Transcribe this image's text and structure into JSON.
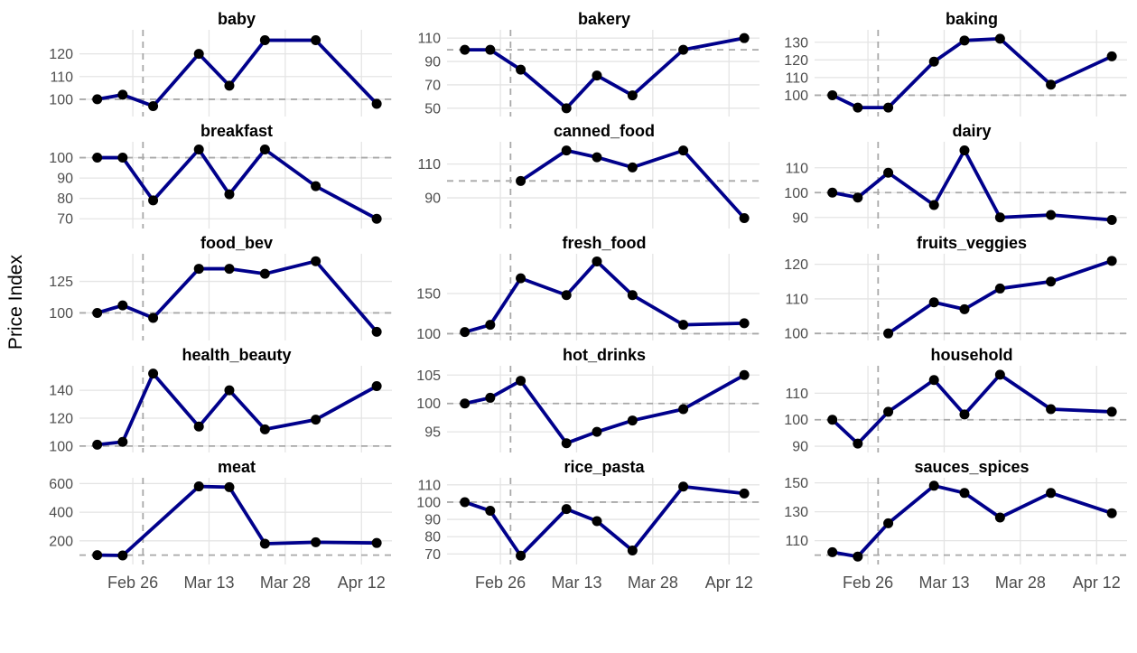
{
  "figure": {
    "ylabel": "Price Index",
    "x_tick_labels": [
      "Feb 26",
      "Mar 13",
      "Mar 28",
      "Apr 12"
    ],
    "x_tick_days": [
      0,
      15,
      30,
      45
    ],
    "xlim_days": [
      -10.5,
      51
    ],
    "x_unit": "days relative to the Feb 26 axis tick",
    "reference_hline_y": 100,
    "reference_vline_day": 2,
    "colors": {
      "line": "#00008B",
      "point": "#000000",
      "grid": "#E4E4E4",
      "dashed_reference": "#A8A8A8",
      "axis_text": "#4D4D4D",
      "title_text": "#000000",
      "background": "#FFFFFF"
    }
  },
  "chart_data": [
    {
      "type": "line",
      "title": "baby",
      "x_days": [
        -7,
        -2,
        4,
        13,
        19,
        26,
        36,
        48
      ],
      "values": [
        100,
        102,
        97,
        120,
        106,
        126,
        126,
        98
      ],
      "yticks": [
        100,
        110,
        120
      ],
      "ylim": [
        94,
        129
      ]
    },
    {
      "type": "line",
      "title": "bakery",
      "x_days": [
        -7,
        -2,
        4,
        13,
        19,
        26,
        36,
        48
      ],
      "values": [
        100,
        100,
        83,
        50,
        78,
        61,
        100,
        110
      ],
      "yticks": [
        50,
        70,
        90,
        110
      ],
      "ylim": [
        46,
        114
      ]
    },
    {
      "type": "line",
      "title": "baking",
      "x_days": [
        -7,
        -2,
        4,
        13,
        19,
        26,
        36,
        48
      ],
      "values": [
        100,
        93,
        93,
        119,
        131,
        132,
        106,
        122
      ],
      "yticks": [
        100,
        110,
        120,
        130
      ],
      "ylim": [
        90,
        135
      ]
    },
    {
      "type": "line",
      "title": "breakfast",
      "x_days": [
        -7,
        -2,
        4,
        13,
        19,
        26,
        36,
        48
      ],
      "values": [
        100,
        100,
        79,
        104,
        82,
        104,
        86,
        70
      ],
      "yticks": [
        70,
        80,
        90,
        100
      ],
      "ylim": [
        67,
        106
      ]
    },
    {
      "type": "line",
      "title": "canned_food",
      "x_days": [
        4,
        13,
        19,
        26,
        36,
        48
      ],
      "values": [
        100,
        118,
        114,
        108,
        118,
        78
      ],
      "yticks": [
        90,
        110
      ],
      "ylim": [
        74,
        121
      ]
    },
    {
      "type": "line",
      "title": "dairy",
      "x_days": [
        -7,
        -2,
        4,
        13,
        19,
        26,
        36,
        48
      ],
      "values": [
        100,
        98,
        108,
        95,
        117,
        90,
        91,
        89
      ],
      "yticks": [
        90,
        100,
        110
      ],
      "ylim": [
        87,
        119
      ]
    },
    {
      "type": "line",
      "title": "food_bev",
      "x_days": [
        -7,
        -2,
        4,
        13,
        19,
        26,
        36,
        48
      ],
      "values": [
        100,
        106,
        96,
        135,
        135,
        131,
        141,
        85
      ],
      "yticks": [
        100,
        125
      ],
      "ylim": [
        81,
        144
      ]
    },
    {
      "type": "line",
      "title": "fresh_food",
      "x_days": [
        -7,
        -2,
        4,
        13,
        19,
        26,
        36,
        48
      ],
      "values": [
        102,
        111,
        169,
        148,
        190,
        148,
        111,
        113
      ],
      "yticks": [
        100,
        150
      ],
      "ylim": [
        96,
        195
      ]
    },
    {
      "type": "line",
      "title": "fruits_veggies",
      "x_days": [
        4,
        13,
        19,
        26,
        36,
        48
      ],
      "values": [
        100,
        109,
        107,
        113,
        115,
        121
      ],
      "yticks": [
        100,
        110,
        120
      ],
      "ylim": [
        99,
        122
      ]
    },
    {
      "type": "line",
      "title": "health_beauty",
      "x_days": [
        -7,
        -2,
        4,
        13,
        19,
        26,
        36,
        48
      ],
      "values": [
        101,
        103,
        152,
        114,
        140,
        112,
        119,
        143
      ],
      "yticks": [
        100,
        120,
        140
      ],
      "ylim": [
        98,
        155
      ]
    },
    {
      "type": "line",
      "title": "hot_drinks",
      "x_days": [
        -7,
        -2,
        4,
        13,
        19,
        26,
        36,
        48
      ],
      "values": [
        100,
        101,
        104,
        93,
        95,
        97,
        99,
        105
      ],
      "yticks": [
        95,
        100,
        105
      ],
      "ylim": [
        92,
        106
      ]
    },
    {
      "type": "line",
      "title": "household",
      "x_days": [
        -7,
        -2,
        4,
        13,
        19,
        26,
        36,
        48
      ],
      "values": [
        100,
        91,
        103,
        115,
        102,
        117,
        104,
        103
      ],
      "yticks": [
        90,
        100,
        110
      ],
      "ylim": [
        89,
        119
      ]
    },
    {
      "type": "line",
      "title": "meat",
      "x_days": [
        -7,
        -2,
        13,
        19,
        26,
        36,
        48
      ],
      "values": [
        100,
        98,
        580,
        575,
        180,
        190,
        185
      ],
      "yticks": [
        200,
        400,
        600
      ],
      "ylim": [
        60,
        615
      ]
    },
    {
      "type": "line",
      "title": "rice_pasta",
      "x_days": [
        -7,
        -2,
        4,
        13,
        19,
        26,
        36,
        48
      ],
      "values": [
        100,
        95,
        69,
        96,
        89,
        72,
        109,
        105
      ],
      "yticks": [
        70,
        80,
        90,
        100,
        110
      ],
      "ylim": [
        66,
        112
      ]
    },
    {
      "type": "line",
      "title": "sauces_spices",
      "x_days": [
        -7,
        -2,
        4,
        13,
        19,
        26,
        36,
        48
      ],
      "values": [
        102,
        99,
        122,
        148,
        143,
        126,
        143,
        129
      ],
      "yticks": [
        110,
        130,
        150
      ],
      "ylim": [
        96,
        151
      ]
    }
  ]
}
